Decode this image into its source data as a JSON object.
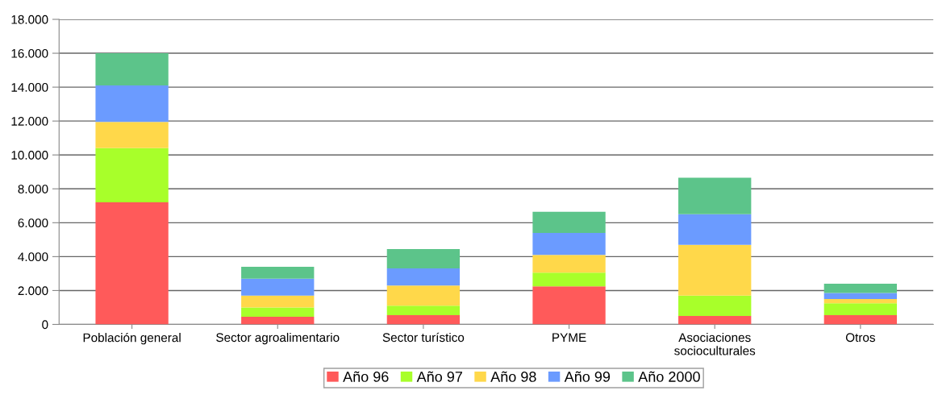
{
  "chart_data": {
    "type": "bar",
    "stacked": true,
    "categories": [
      "Población general",
      "Sector agroalimentario",
      "Sector turístico",
      "PYME",
      "Asociaciones\nsocioculturales",
      "Otros"
    ],
    "series": [
      {
        "name": "Año 96",
        "color": "#ff5a5a",
        "values": [
          7200,
          450,
          550,
          2250,
          500,
          550
        ]
      },
      {
        "name": "Año 97",
        "color": "#a8ff2a",
        "values": [
          3200,
          550,
          550,
          800,
          1200,
          700
        ]
      },
      {
        "name": "Año 98",
        "color": "#ffd84a",
        "values": [
          1550,
          700,
          1200,
          1050,
          3000,
          250
        ]
      },
      {
        "name": "Año 99",
        "color": "#6b9bff",
        "values": [
          2150,
          1000,
          1000,
          1300,
          1800,
          350
        ]
      },
      {
        "name": "Año 2000",
        "color": "#5cc48a",
        "values": [
          1900,
          700,
          1150,
          1250,
          2150,
          550
        ]
      }
    ],
    "ylim": [
      0,
      18000
    ],
    "yticks": [
      0,
      {
        "value": 2000,
        "label": "2.000"
      },
      {
        "value": 4000,
        "label": "4.000"
      },
      {
        "value": 6000,
        "label": "6.000"
      },
      {
        "value": 8000,
        "label": "8.000"
      },
      {
        "value": 10000,
        "label": "10.000"
      },
      {
        "value": 12000,
        "label": "12.000"
      },
      {
        "value": 14000,
        "label": "14.000"
      },
      {
        "value": 16000,
        "label": "16.000"
      },
      {
        "value": 18000,
        "label": "18.000"
      }
    ],
    "grid": "y",
    "legend": "bottom"
  }
}
